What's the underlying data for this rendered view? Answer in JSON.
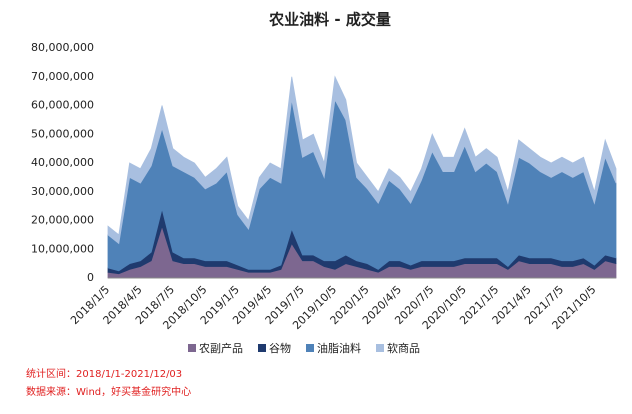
{
  "chart_data": {
    "type": "stacked-area",
    "title": "农业油料 - 成交量",
    "categories": [
      "2018/1/5",
      null,
      null,
      "2018/4/5",
      null,
      null,
      "2018/7/5",
      null,
      null,
      "2018/10/5",
      null,
      null,
      "2019/1/5",
      null,
      null,
      "2019/4/5",
      null,
      null,
      "2019/7/5",
      null,
      null,
      "2019/10/5",
      null,
      null,
      "2020/1/5",
      null,
      null,
      "2020/4/5",
      null,
      null,
      "2020/7/5",
      null,
      null,
      "2020/10/5",
      null,
      null,
      "2021/1/5",
      null,
      null,
      "2021/4/5",
      null,
      null,
      "2021/7/5",
      null,
      null,
      "2021/10/5",
      null,
      null
    ],
    "series": [
      {
        "name": "农副产品",
        "color": "#7d6790",
        "values": [
          2000000,
          1500000,
          3000000,
          4000000,
          6000000,
          18000000,
          6000000,
          5000000,
          5000000,
          4000000,
          4000000,
          4000000,
          3000000,
          2000000,
          2000000,
          2000000,
          3000000,
          12000000,
          6000000,
          6000000,
          4000000,
          3000000,
          5000000,
          4000000,
          3000000,
          2000000,
          4000000,
          4000000,
          3000000,
          4000000,
          4000000,
          4000000,
          4000000,
          5000000,
          5000000,
          5000000,
          5000000,
          3000000,
          6000000,
          5000000,
          5000000,
          5000000,
          4000000,
          4000000,
          5000000,
          3000000,
          6000000,
          5000000
        ]
      },
      {
        "name": "谷物",
        "color": "#1f3a6e",
        "values": [
          1500000,
          1000000,
          2000000,
          2000000,
          3000000,
          6000000,
          3000000,
          2000000,
          2000000,
          2000000,
          2000000,
          2000000,
          1500000,
          1000000,
          1000000,
          1000000,
          1500000,
          5000000,
          2000000,
          2000000,
          2000000,
          3000000,
          3000000,
          2000000,
          2000000,
          1000000,
          2000000,
          2000000,
          1500000,
          2000000,
          2000000,
          2000000,
          2000000,
          2000000,
          2000000,
          2000000,
          2000000,
          1000000,
          2000000,
          2000000,
          2000000,
          2000000,
          2000000,
          2000000,
          2000000,
          1500000,
          2000000,
          2000000
        ]
      },
      {
        "name": "油脂油料",
        "color": "#4f82b8",
        "values": [
          11500000,
          9500000,
          30000000,
          27000000,
          30000000,
          28000000,
          30000000,
          30000000,
          28000000,
          25000000,
          27000000,
          31000000,
          17500000,
          14000000,
          28000000,
          32000000,
          28500000,
          45000000,
          34000000,
          36000000,
          29000000,
          56000000,
          47000000,
          29000000,
          26000000,
          23000000,
          28000000,
          25000000,
          21500000,
          28000000,
          38000000,
          31000000,
          31000000,
          39000000,
          30000000,
          33000000,
          30000000,
          22000000,
          34000000,
          33000000,
          30000000,
          28000000,
          31000000,
          29000000,
          30000000,
          21500000,
          34000000,
          26000000
        ]
      },
      {
        "name": "软商品",
        "color": "#a8bfe0",
        "values": [
          3000000,
          3000000,
          5000000,
          5000000,
          6000000,
          8000000,
          6000000,
          5000000,
          5000000,
          4000000,
          5000000,
          5000000,
          3000000,
          3000000,
          4000000,
          5000000,
          5000000,
          8000000,
          6000000,
          6000000,
          5000000,
          8000000,
          7000000,
          5000000,
          4000000,
          4000000,
          4000000,
          4000000,
          4000000,
          4000000,
          6000000,
          5000000,
          5000000,
          6000000,
          5000000,
          5000000,
          5000000,
          4000000,
          6000000,
          5000000,
          5000000,
          5000000,
          5000000,
          5000000,
          5000000,
          4000000,
          6000000,
          5000000
        ]
      }
    ],
    "ylim": [
      0,
      80000000
    ],
    "yticks": [
      {
        "value": 0,
        "label": "0"
      },
      {
        "value": 10000000,
        "label": "10,000,000"
      },
      {
        "value": 20000000,
        "label": "20,000,000"
      },
      {
        "value": 30000000,
        "label": "30,000,000"
      },
      {
        "value": 40000000,
        "label": "40,000,000"
      },
      {
        "value": 50000000,
        "label": "50,000,000"
      },
      {
        "value": 60000000,
        "label": "60,000,000"
      },
      {
        "value": 70000000,
        "label": "70,000,000"
      },
      {
        "value": 80000000,
        "label": "80,000,000"
      }
    ],
    "legend": "bottom",
    "notes": [
      "统计区间：2018/1/1-2021/12/03",
      "数据来源：Wind，好买基金研究中心"
    ]
  }
}
